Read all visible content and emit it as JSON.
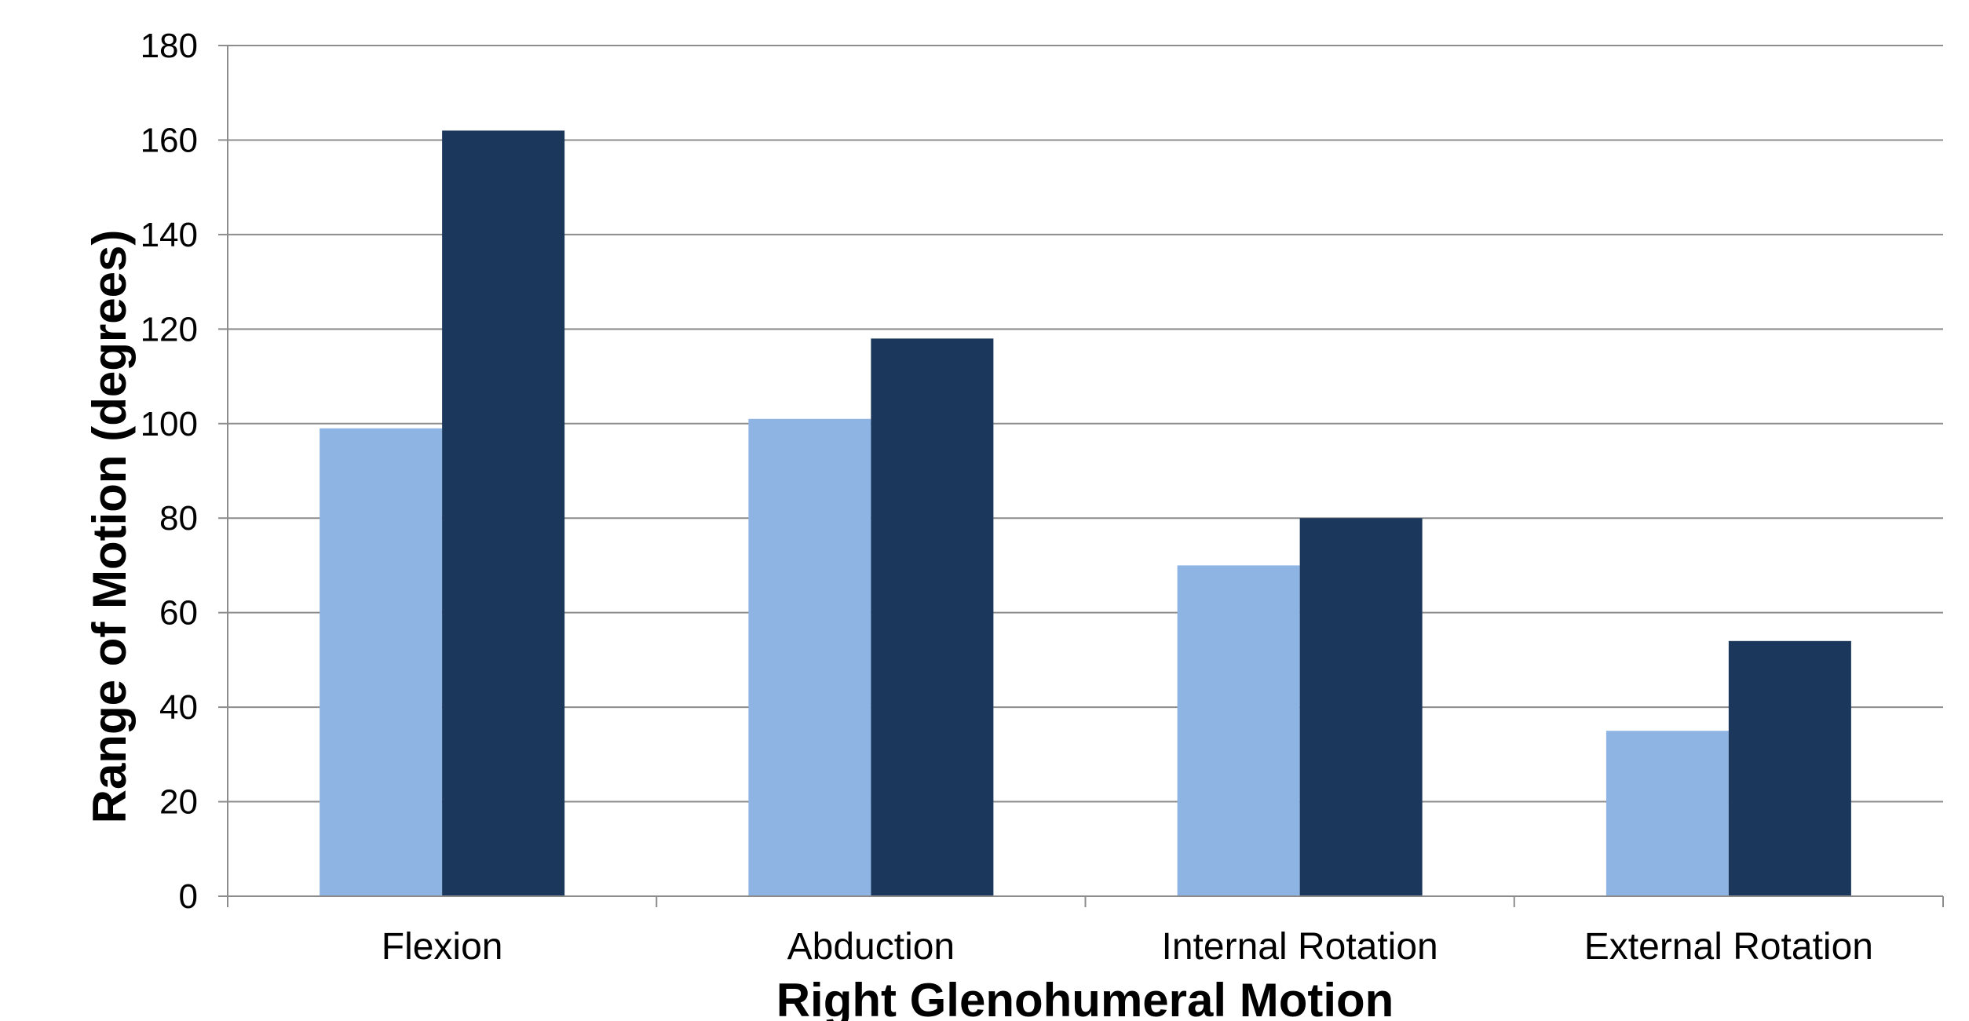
{
  "chart_data": {
    "type": "bar",
    "title": "",
    "xlabel": "Right Glenohumeral Motion",
    "ylabel": "Range of Motion (degrees)",
    "categories": [
      "Flexion",
      "Abduction",
      "Internal Rotation",
      "External Rotation"
    ],
    "series": [
      {
        "values": [
          99,
          101,
          70,
          35
        ],
        "color": "#8eb4e3"
      },
      {
        "values": [
          162,
          118,
          80,
          54
        ],
        "color": "#1b375c"
      }
    ],
    "ylim": [
      0,
      180
    ],
    "yticks": [
      0,
      20,
      40,
      60,
      80,
      100,
      120,
      140,
      160,
      180
    ],
    "grid": true,
    "legend": "none"
  }
}
